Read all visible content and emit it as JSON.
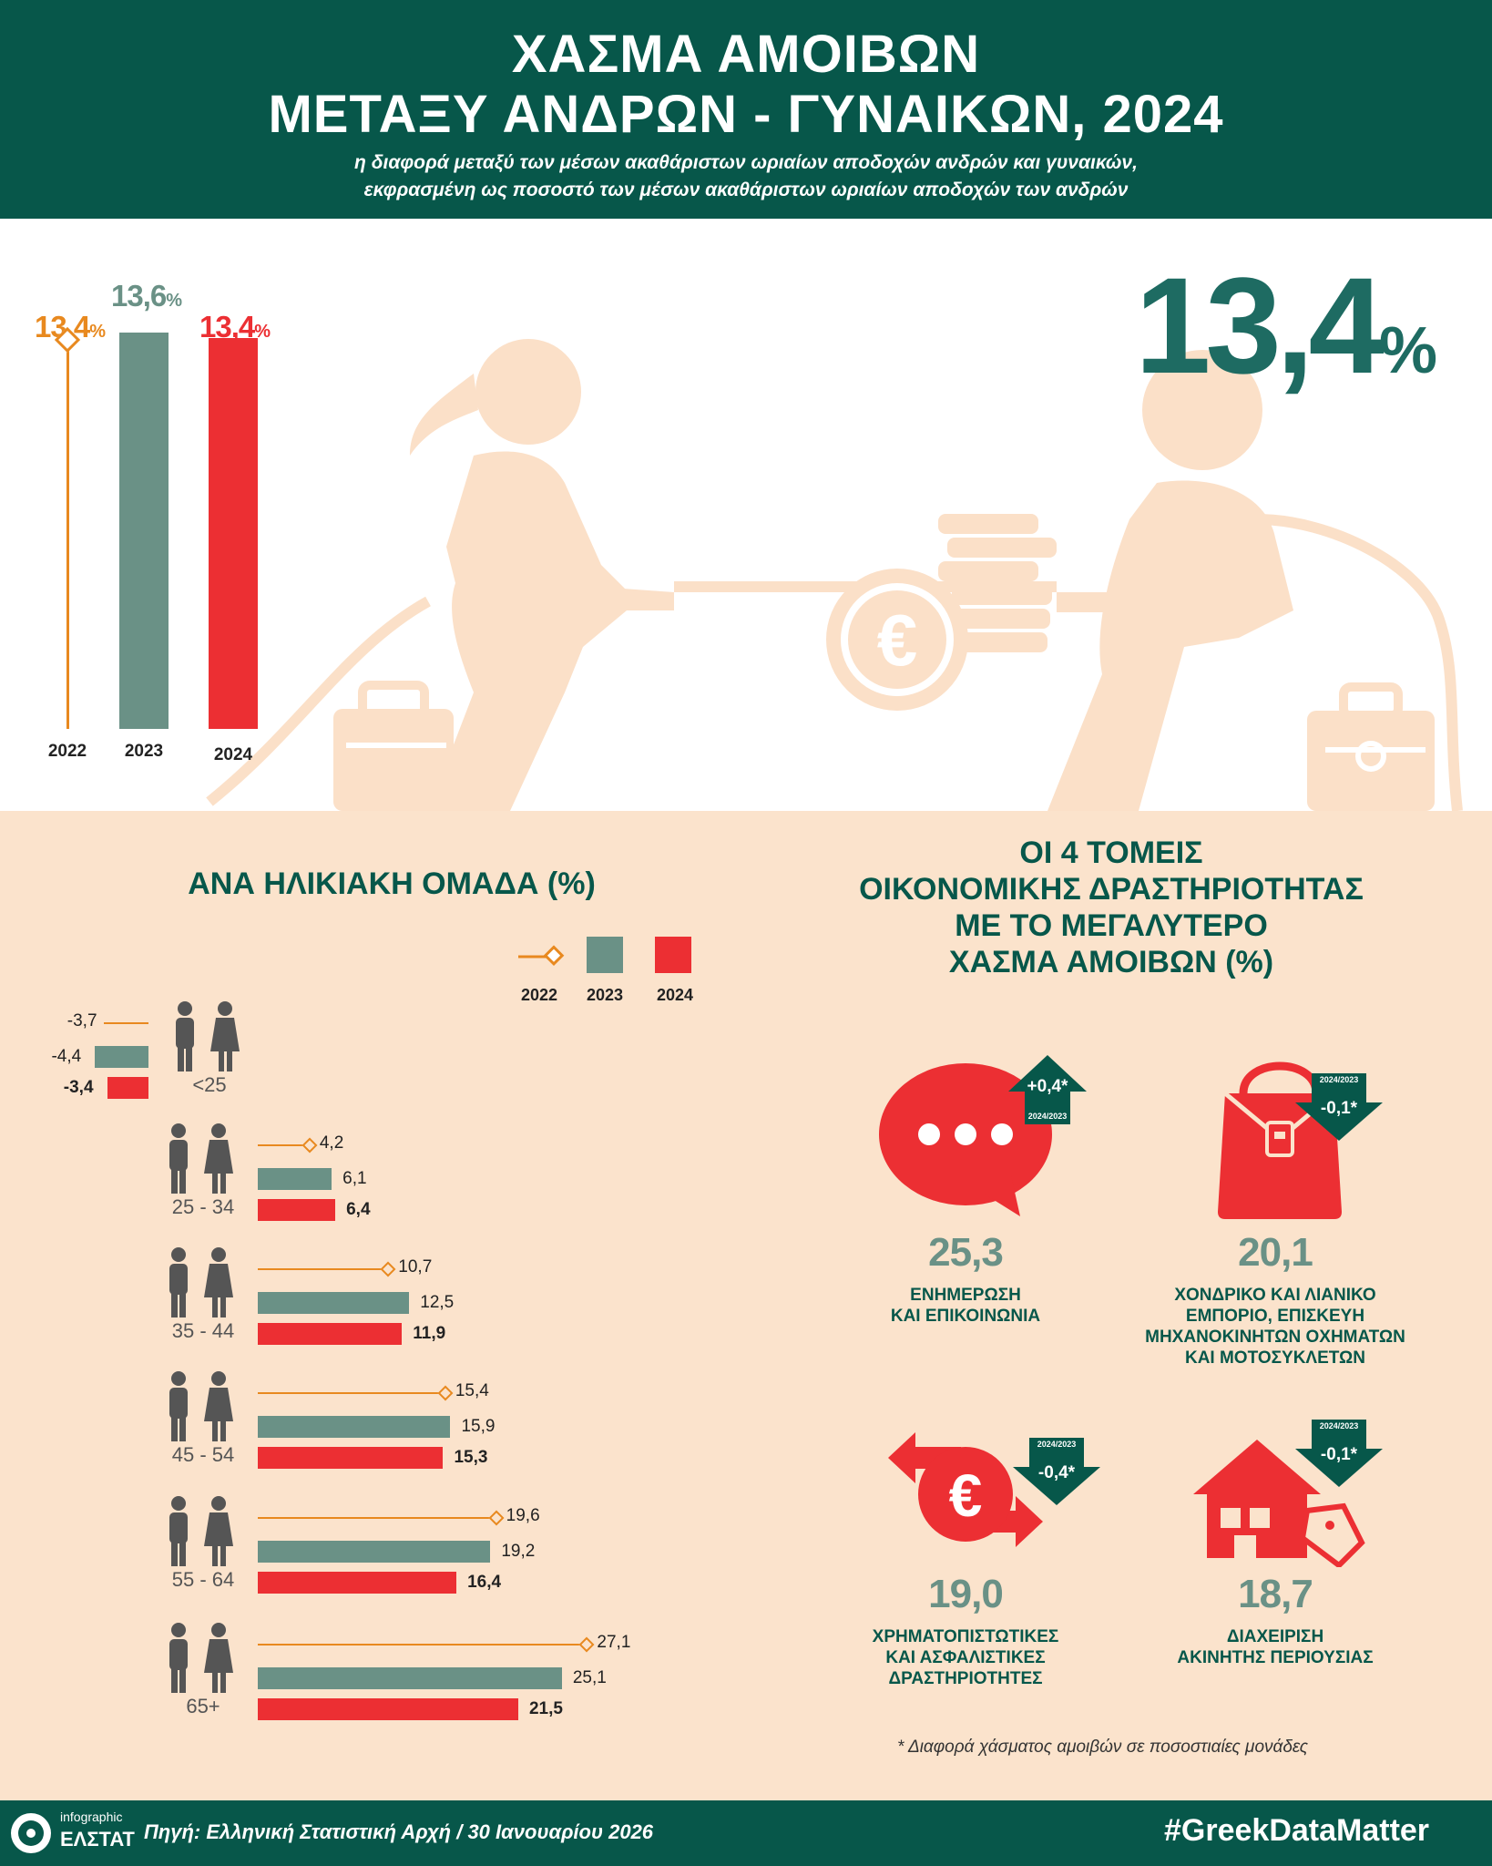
{
  "header": {
    "title_line1": "ΧΑΣΜΑ ΑΜΟΙΒΩΝ",
    "title_line2": "ΜΕΤΑΞΥ ΑΝΔΡΩΝ - ΓΥΝΑΙΚΩΝ, 2024",
    "subtitle_line1": "η διαφορά μεταξύ των μέσων ακαθάριστων ωριαίων αποδοχών ανδρών και γυναικών,",
    "subtitle_line2": "εκφρασμένη ως ποσοστό των μέσων ακαθάριστων ωριαίων αποδοχών των ανδρών"
  },
  "headline": {
    "value": "13,4",
    "unit": "%"
  },
  "colors": {
    "y2022": "#e8891f",
    "y2023": "#6a9186",
    "y2024": "#ec2f33",
    "dark_green": "#07574a",
    "beige": "#fbe3cc",
    "figure": "#fbe0c8"
  },
  "yearly": {
    "pct_sign": "%",
    "items": [
      {
        "year": "2022",
        "value": 13.4,
        "label": "13,4"
      },
      {
        "year": "2023",
        "value": 13.6,
        "label": "13,6"
      },
      {
        "year": "2024",
        "value": 13.4,
        "label": "13,4"
      }
    ]
  },
  "age_section": {
    "title": "ΑΝΑ ΗΛΙΚΙΑΚΗ ΟΜΑΔΑ (%)",
    "legend": [
      "2022",
      "2023",
      "2024"
    ]
  },
  "chart_data": {
    "type": "bar",
    "categories": [
      "<25",
      "25 - 34",
      "35 - 44",
      "45 - 54",
      "55 - 64",
      "65+"
    ],
    "series": [
      {
        "name": "2022",
        "values": [
          -3.7,
          4.2,
          10.7,
          15.4,
          19.6,
          27.1
        ],
        "labels": [
          "-3,7",
          "4,2",
          "10,7",
          "15,4",
          "19,6",
          "27,1"
        ]
      },
      {
        "name": "2023",
        "values": [
          -4.4,
          6.1,
          12.5,
          15.9,
          19.2,
          25.1
        ],
        "labels": [
          "-4,4",
          "6,1",
          "12,5",
          "15,9",
          "19,2",
          "25,1"
        ]
      },
      {
        "name": "2024",
        "values": [
          -3.4,
          6.4,
          11.9,
          15.3,
          16.4,
          21.5
        ],
        "labels": [
          "-3,4",
          "6,4",
          "11,9",
          "15,3",
          "16,4",
          "21,5"
        ]
      }
    ]
  },
  "sectors_section": {
    "title_lines": [
      "ΟΙ 4 ΤΟΜΕΙΣ",
      "ΟΙΚΟΝΟΜΙΚΗΣ ΔΡΑΣΤΗΡΙΟΤΗΤΑΣ",
      "ΜΕ ΤΟ ΜΕΓΑΛΥΤΕΡΟ",
      "ΧΑΣΜΑ ΑΜΟΙΒΩΝ (%)"
    ],
    "sectors": [
      {
        "value": "25,3",
        "name_lines": [
          "ΕΝΗΜΕΡΩΣΗ",
          "ΚΑΙ ΕΠΙΚΟΙΝΩΝΙΑ"
        ],
        "change": "+0,4*",
        "period": "2024/2023",
        "direction": "up",
        "icon": "speech-bubble-icon"
      },
      {
        "value": "20,1",
        "name_lines": [
          "ΧΟΝΔΡΙΚΟ ΚΑΙ ΛΙΑΝΙΚΟ",
          "ΕΜΠΟΡΙΟ, ΕΠΙΣΚΕΥΗ",
          "ΜΗΧΑΝΟΚΙΝΗΤΩΝ ΟΧΗΜΑΤΩΝ",
          "ΚΑΙ ΜΟΤΟΣΥΚΛΕΤΩΝ"
        ],
        "change": "-0,1*",
        "period": "2024/2023",
        "direction": "down",
        "icon": "shopping-bag-icon"
      },
      {
        "value": "19,0",
        "name_lines": [
          "ΧΡΗΜΑΤΟΠΙΣΤΩΤΙΚΕΣ",
          "ΚΑΙ ΑΣΦΑΛΙΣΤΙΚΕΣ",
          "ΔΡΑΣΤΗΡΙΟΤΗΤΕΣ"
        ],
        "change": "-0,4*",
        "period": "2024/2023",
        "direction": "down",
        "icon": "euro-exchange-icon"
      },
      {
        "value": "18,7",
        "name_lines": [
          "ΔΙΑΧΕΙΡΙΣΗ",
          "ΑΚΙΝΗΤΗΣ ΠΕΡΙΟΥΣΙΑΣ"
        ],
        "change": "-0,1*",
        "period": "2024/2023",
        "direction": "down",
        "icon": "house-tag-icon"
      }
    ],
    "footnote": "* Διαφορά χάσματος αμοιβών σε ποσοστιαίες μονάδες"
  },
  "footer": {
    "logo_line1": "infographic",
    "logo_line2": "ΕΛΣΤΑΤ",
    "source": "Πηγή: Ελληνική Στατιστική Αρχή  / 30 Ιανουαρίου 2026",
    "hashtag": "#GreekDataMatter"
  }
}
